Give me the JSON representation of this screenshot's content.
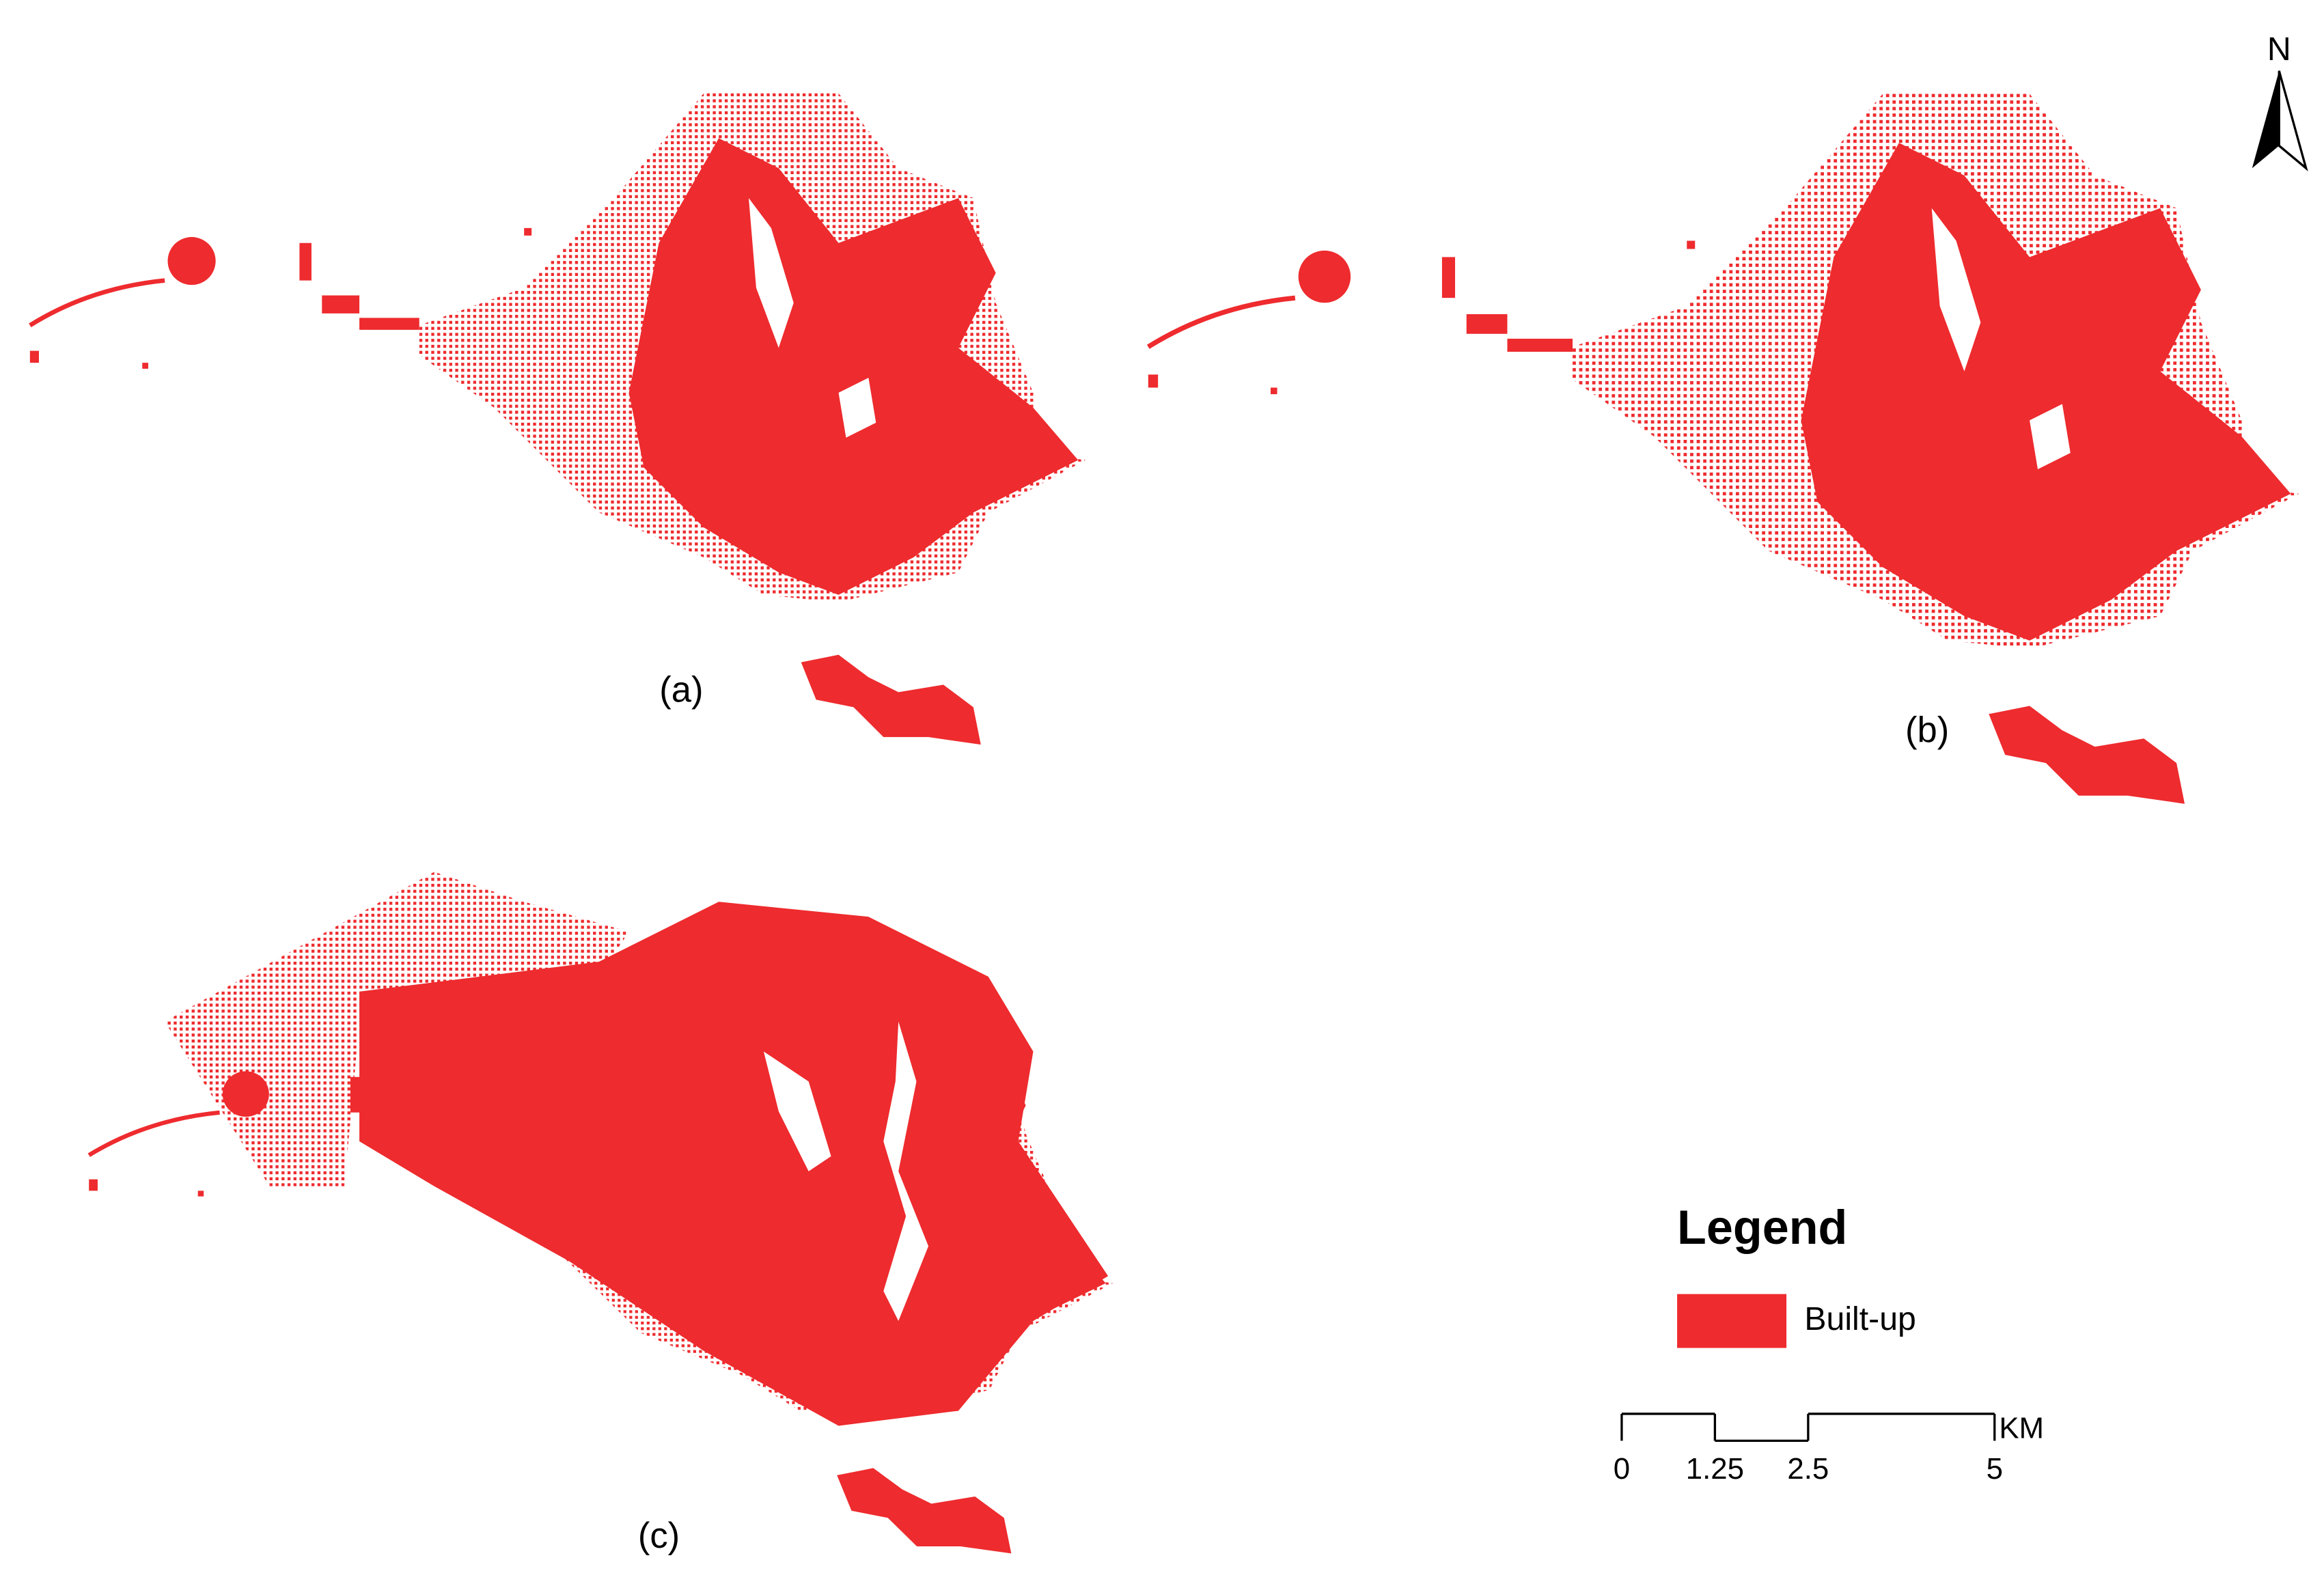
{
  "panels": [
    {
      "label": "(a)"
    },
    {
      "label": "(b)"
    },
    {
      "label": "(c)"
    }
  ],
  "north_arrow": {
    "label": "N"
  },
  "legend": {
    "title": "Legend",
    "items": [
      {
        "label": "Built-up",
        "color": "#ee2b2e"
      }
    ]
  },
  "scale_bar": {
    "ticks": [
      0,
      1.25,
      2.5,
      5
    ],
    "unit": "KM"
  }
}
